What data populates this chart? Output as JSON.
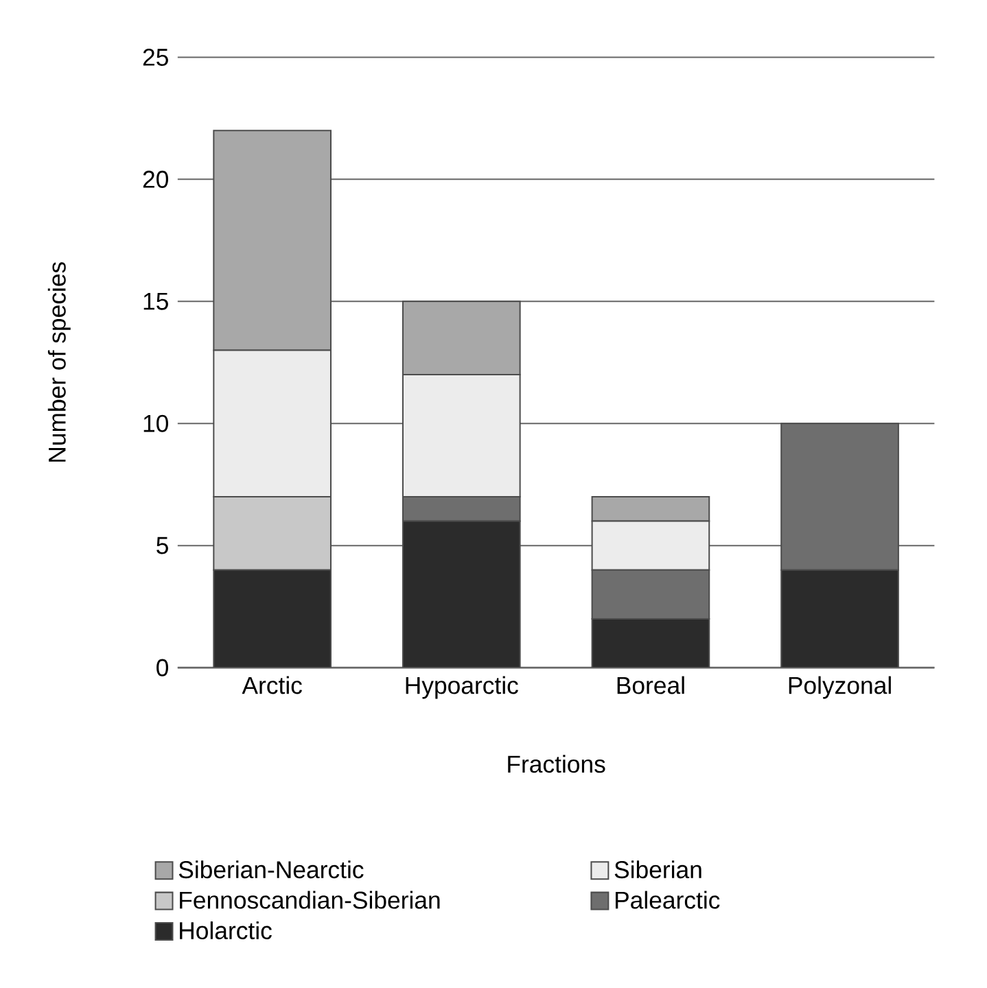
{
  "chart_data": {
    "type": "bar",
    "stacked": true,
    "xlabel": "Fractions",
    "ylabel": "Number of species",
    "categories": [
      "Arctic",
      "Hypoarctic",
      "Boreal",
      "Polyzonal"
    ],
    "series": [
      {
        "name": "Holarctic",
        "color": "#2b2b2b",
        "values": [
          4,
          6,
          2,
          4
        ]
      },
      {
        "name": "Palearctic",
        "color": "#6e6e6e",
        "values": [
          0,
          1,
          2,
          6
        ]
      },
      {
        "name": "Fennoscandian-Siberian",
        "color": "#c8c8c8",
        "values": [
          3,
          0,
          0,
          0
        ]
      },
      {
        "name": "Siberian",
        "color": "#ececec",
        "values": [
          6,
          5,
          2,
          0
        ]
      },
      {
        "name": "Siberian-Nearctic",
        "color": "#a8a8a8",
        "values": [
          9,
          3,
          1,
          0
        ]
      }
    ],
    "ylim": [
      0,
      25
    ],
    "yticks": [
      0,
      5,
      10,
      15,
      20,
      25
    ],
    "grid": "y",
    "legend": "bottom"
  }
}
